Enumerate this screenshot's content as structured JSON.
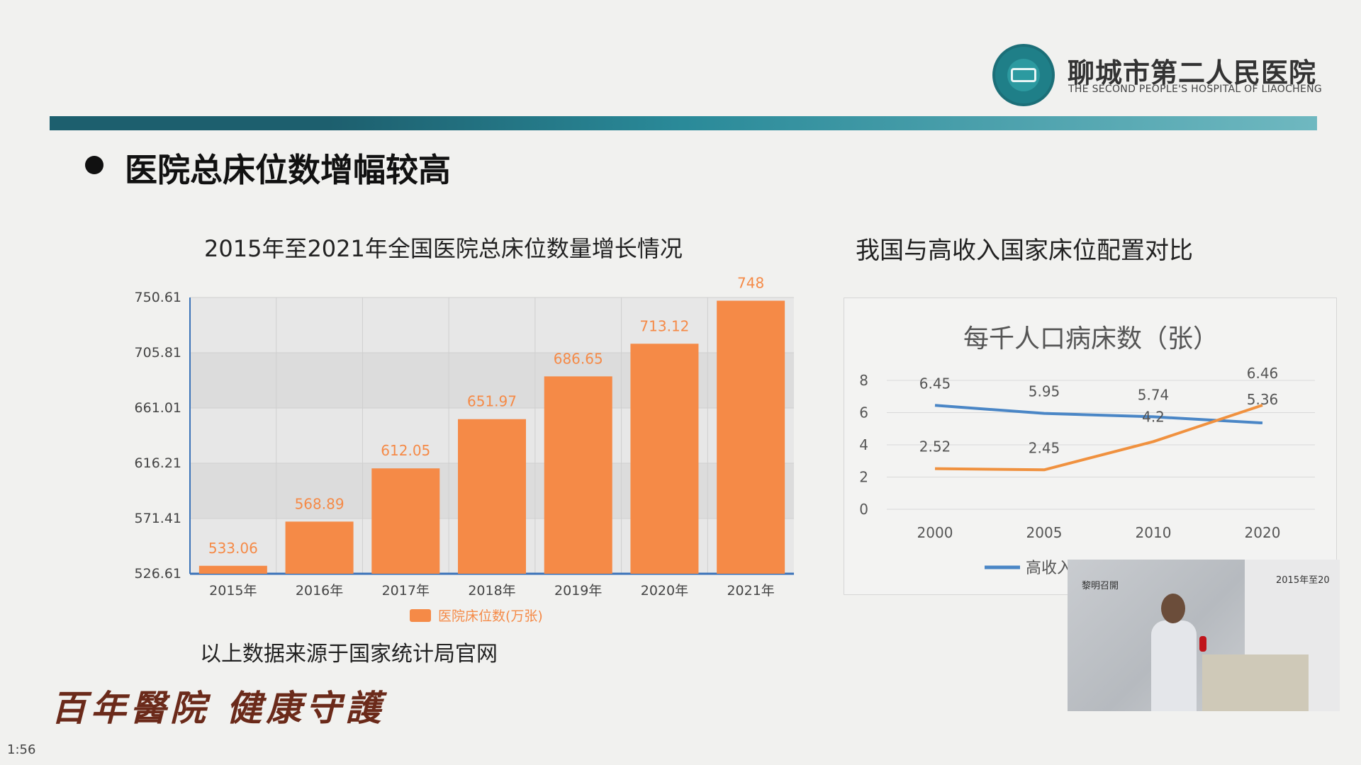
{
  "header": {
    "hospital_name": "聊城市第二人民医院",
    "hospital_name_en": "THE SECOND PEOPLE'S HOSPITAL OF LIAOCHENG"
  },
  "slide": {
    "title": "医院总床位数增幅较高",
    "source_note": "以上数据来源于国家统计局官网",
    "slogan": "百年醫院 健康守護"
  },
  "chart_data": [
    {
      "type": "bar",
      "title": "2015年至2021年全国医院总床位数量增长情况",
      "categories": [
        "2015年",
        "2016年",
        "2017年",
        "2018年",
        "2019年",
        "2020年",
        "2021年"
      ],
      "series": [
        {
          "name": "医院床位数(万张)",
          "values": [
            533.06,
            568.89,
            612.05,
            651.97,
            686.65,
            713.12,
            748
          ]
        }
      ],
      "data_labels": [
        "533.06",
        "568.89",
        "612.05",
        "651.97",
        "686.65",
        "713.12",
        "748"
      ],
      "y_ticks": [
        "526.61",
        "571.41",
        "616.21",
        "661.01",
        "705.81",
        "750.61"
      ],
      "ylim": [
        526.61,
        750.61
      ],
      "legend": "bottom",
      "colors": {
        "bar": "#f58a47",
        "label": "#f58a47"
      }
    },
    {
      "type": "line",
      "title": "我国与高收入国家床位配置对比",
      "inner_title": "每千人口病床数（张）",
      "x": [
        "2000",
        "2005",
        "2010",
        "2020"
      ],
      "y_ticks": [
        "0",
        "2",
        "4",
        "6",
        "8"
      ],
      "ylim": [
        0,
        8
      ],
      "series": [
        {
          "name": "高收入",
          "values": [
            6.45,
            5.95,
            5.74,
            5.36
          ],
          "labels": [
            "6.45",
            "5.95",
            "5.74",
            "5.36"
          ],
          "color": "#4a86c6"
        },
        {
          "values": [
            2.52,
            2.45,
            4.2,
            6.46
          ],
          "labels": [
            "2.52",
            "2.45",
            "4.2",
            "6.46"
          ],
          "color": "#f0913f"
        }
      ],
      "legend": "bottom"
    }
  ],
  "video": {
    "banner": "黎明召開",
    "screen_title": "2015年至20"
  },
  "status": {
    "timestamp": "1:56"
  }
}
